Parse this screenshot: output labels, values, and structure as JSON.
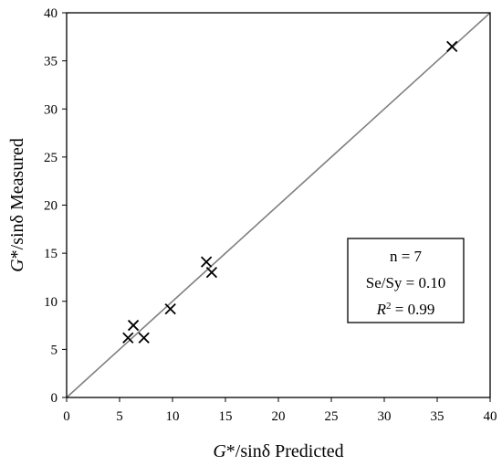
{
  "chart_data": {
    "type": "scatter",
    "title": "",
    "xlabel_italic": "G",
    "xlabel_rest": "*/sinδ Predicted",
    "ylabel_italic": "G",
    "ylabel_rest": "*/sinδ Measured",
    "xlim": [
      0,
      40
    ],
    "ylim": [
      0,
      40
    ],
    "xticks": [
      0,
      5,
      10,
      15,
      20,
      25,
      30,
      35,
      40
    ],
    "yticks": [
      0,
      5,
      10,
      15,
      20,
      25,
      30,
      35,
      40
    ],
    "grid": false,
    "marker": "x",
    "series": [
      {
        "points": [
          {
            "x": 5.8,
            "y": 6.2
          },
          {
            "x": 6.3,
            "y": 7.5
          },
          {
            "x": 7.3,
            "y": 6.2
          },
          {
            "x": 9.8,
            "y": 9.2
          },
          {
            "x": 13.2,
            "y": 14.1
          },
          {
            "x": 13.7,
            "y": 13.0
          },
          {
            "x": 36.4,
            "y": 36.5
          }
        ]
      }
    ],
    "reference_line": {
      "type": "1:1",
      "from": [
        0,
        0
      ],
      "to": [
        40,
        40
      ],
      "color": "#808080"
    },
    "stats_box": {
      "position": "lower-right",
      "n_line": "n = 7",
      "se_line": "Se/Sy = 0.10",
      "r2_italic": "R",
      "r2_sup": "2",
      "r2_value": " = 0.99"
    }
  }
}
